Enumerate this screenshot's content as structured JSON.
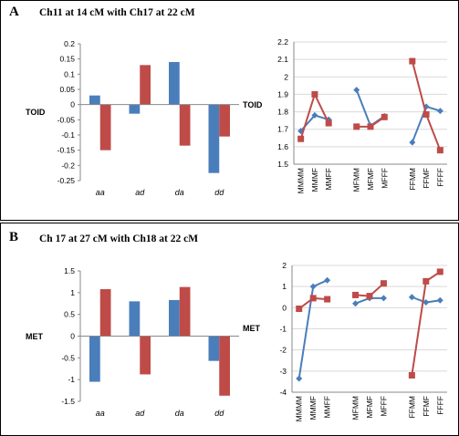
{
  "panels": [
    {
      "label": "A",
      "title": "Ch11 at 14 cM with Ch17 at 22 cM"
    },
    {
      "label": "B",
      "title": "Ch 17 at 27 cM with Ch18 at 22 cM"
    }
  ],
  "colors": {
    "blue": "#4a7ebb",
    "red": "#be4b48",
    "grid": "#d9d9d9",
    "axis": "#888888"
  },
  "chart_data": [
    {
      "id": "A-bar",
      "type": "bar",
      "ylabel": "TOID",
      "categories": [
        "aa",
        "ad",
        "da",
        "dd"
      ],
      "series": [
        {
          "color": "blue",
          "values": [
            0.03,
            -0.03,
            0.14,
            -0.225
          ]
        },
        {
          "color": "red",
          "values": [
            -0.15,
            0.13,
            -0.135,
            -0.105
          ]
        }
      ],
      "ylim": [
        -0.25,
        0.2
      ],
      "ticks": [
        "0.2",
        "0.15",
        "0.1",
        "0.05",
        "0",
        "-0.05",
        "-0.1",
        "-0.15",
        "-0.2",
        "-0.25"
      ],
      "grid": false
    },
    {
      "id": "A-line",
      "type": "line",
      "ylabel": "TOID",
      "categories": [
        "MMMM",
        "MMMF",
        "MMFF",
        "MFMM",
        "MFMF",
        "MFFF",
        "FFMM",
        "FFMF",
        "FFFF"
      ],
      "groups": [
        [
          0,
          1,
          2
        ],
        [
          3,
          4,
          5
        ],
        [
          6,
          7,
          8
        ]
      ],
      "series": [
        {
          "color": "blue",
          "marker": "diamond",
          "values": [
            1.69,
            1.78,
            1.755,
            1.925,
            1.72,
            1.775,
            1.625,
            1.83,
            1.805
          ]
        },
        {
          "color": "red",
          "marker": "square",
          "values": [
            1.645,
            1.9,
            1.735,
            1.715,
            1.715,
            1.77,
            2.09,
            1.785,
            1.58
          ]
        }
      ],
      "ylim": [
        1.5,
        2.2
      ],
      "ticks": [
        "2.2",
        "2.1",
        "2",
        "1.9",
        "1.8",
        "1.7",
        "1.6",
        "1.5"
      ],
      "grid": true
    },
    {
      "id": "B-bar",
      "type": "bar",
      "ylabel": "MET",
      "categories": [
        "aa",
        "ad",
        "da",
        "dd"
      ],
      "series": [
        {
          "color": "blue",
          "values": [
            -1.05,
            0.8,
            0.83,
            -0.57
          ]
        },
        {
          "color": "red",
          "values": [
            1.08,
            -0.88,
            1.13,
            -1.37
          ]
        }
      ],
      "ylim": [
        -1.5,
        1.5
      ],
      "ticks": [
        "1.5",
        "1",
        "0.5",
        "0",
        "-0.5",
        "-1",
        "-1.5"
      ],
      "grid": false
    },
    {
      "id": "B-line",
      "type": "line",
      "ylabel": "MET",
      "categories": [
        "MMMM",
        "MMMF",
        "MMFF",
        "MFMM",
        "MFMF",
        "MFFF",
        "FFMM",
        "FFMF",
        "FFFF"
      ],
      "groups": [
        [
          0,
          1,
          2
        ],
        [
          3,
          4,
          5
        ],
        [
          6,
          7,
          8
        ]
      ],
      "series": [
        {
          "color": "blue",
          "marker": "diamond",
          "values": [
            -3.35,
            1.0,
            1.3,
            0.2,
            0.45,
            0.45,
            0.5,
            0.25,
            0.35
          ]
        },
        {
          "color": "red",
          "marker": "square",
          "values": [
            -0.05,
            0.45,
            0.4,
            0.6,
            0.55,
            1.15,
            -3.2,
            1.25,
            1.7
          ]
        }
      ],
      "ylim": [
        -4,
        2
      ],
      "ticks": [
        "2",
        "1",
        "0",
        "-1",
        "-2",
        "-3",
        "-4"
      ],
      "grid": true
    }
  ]
}
